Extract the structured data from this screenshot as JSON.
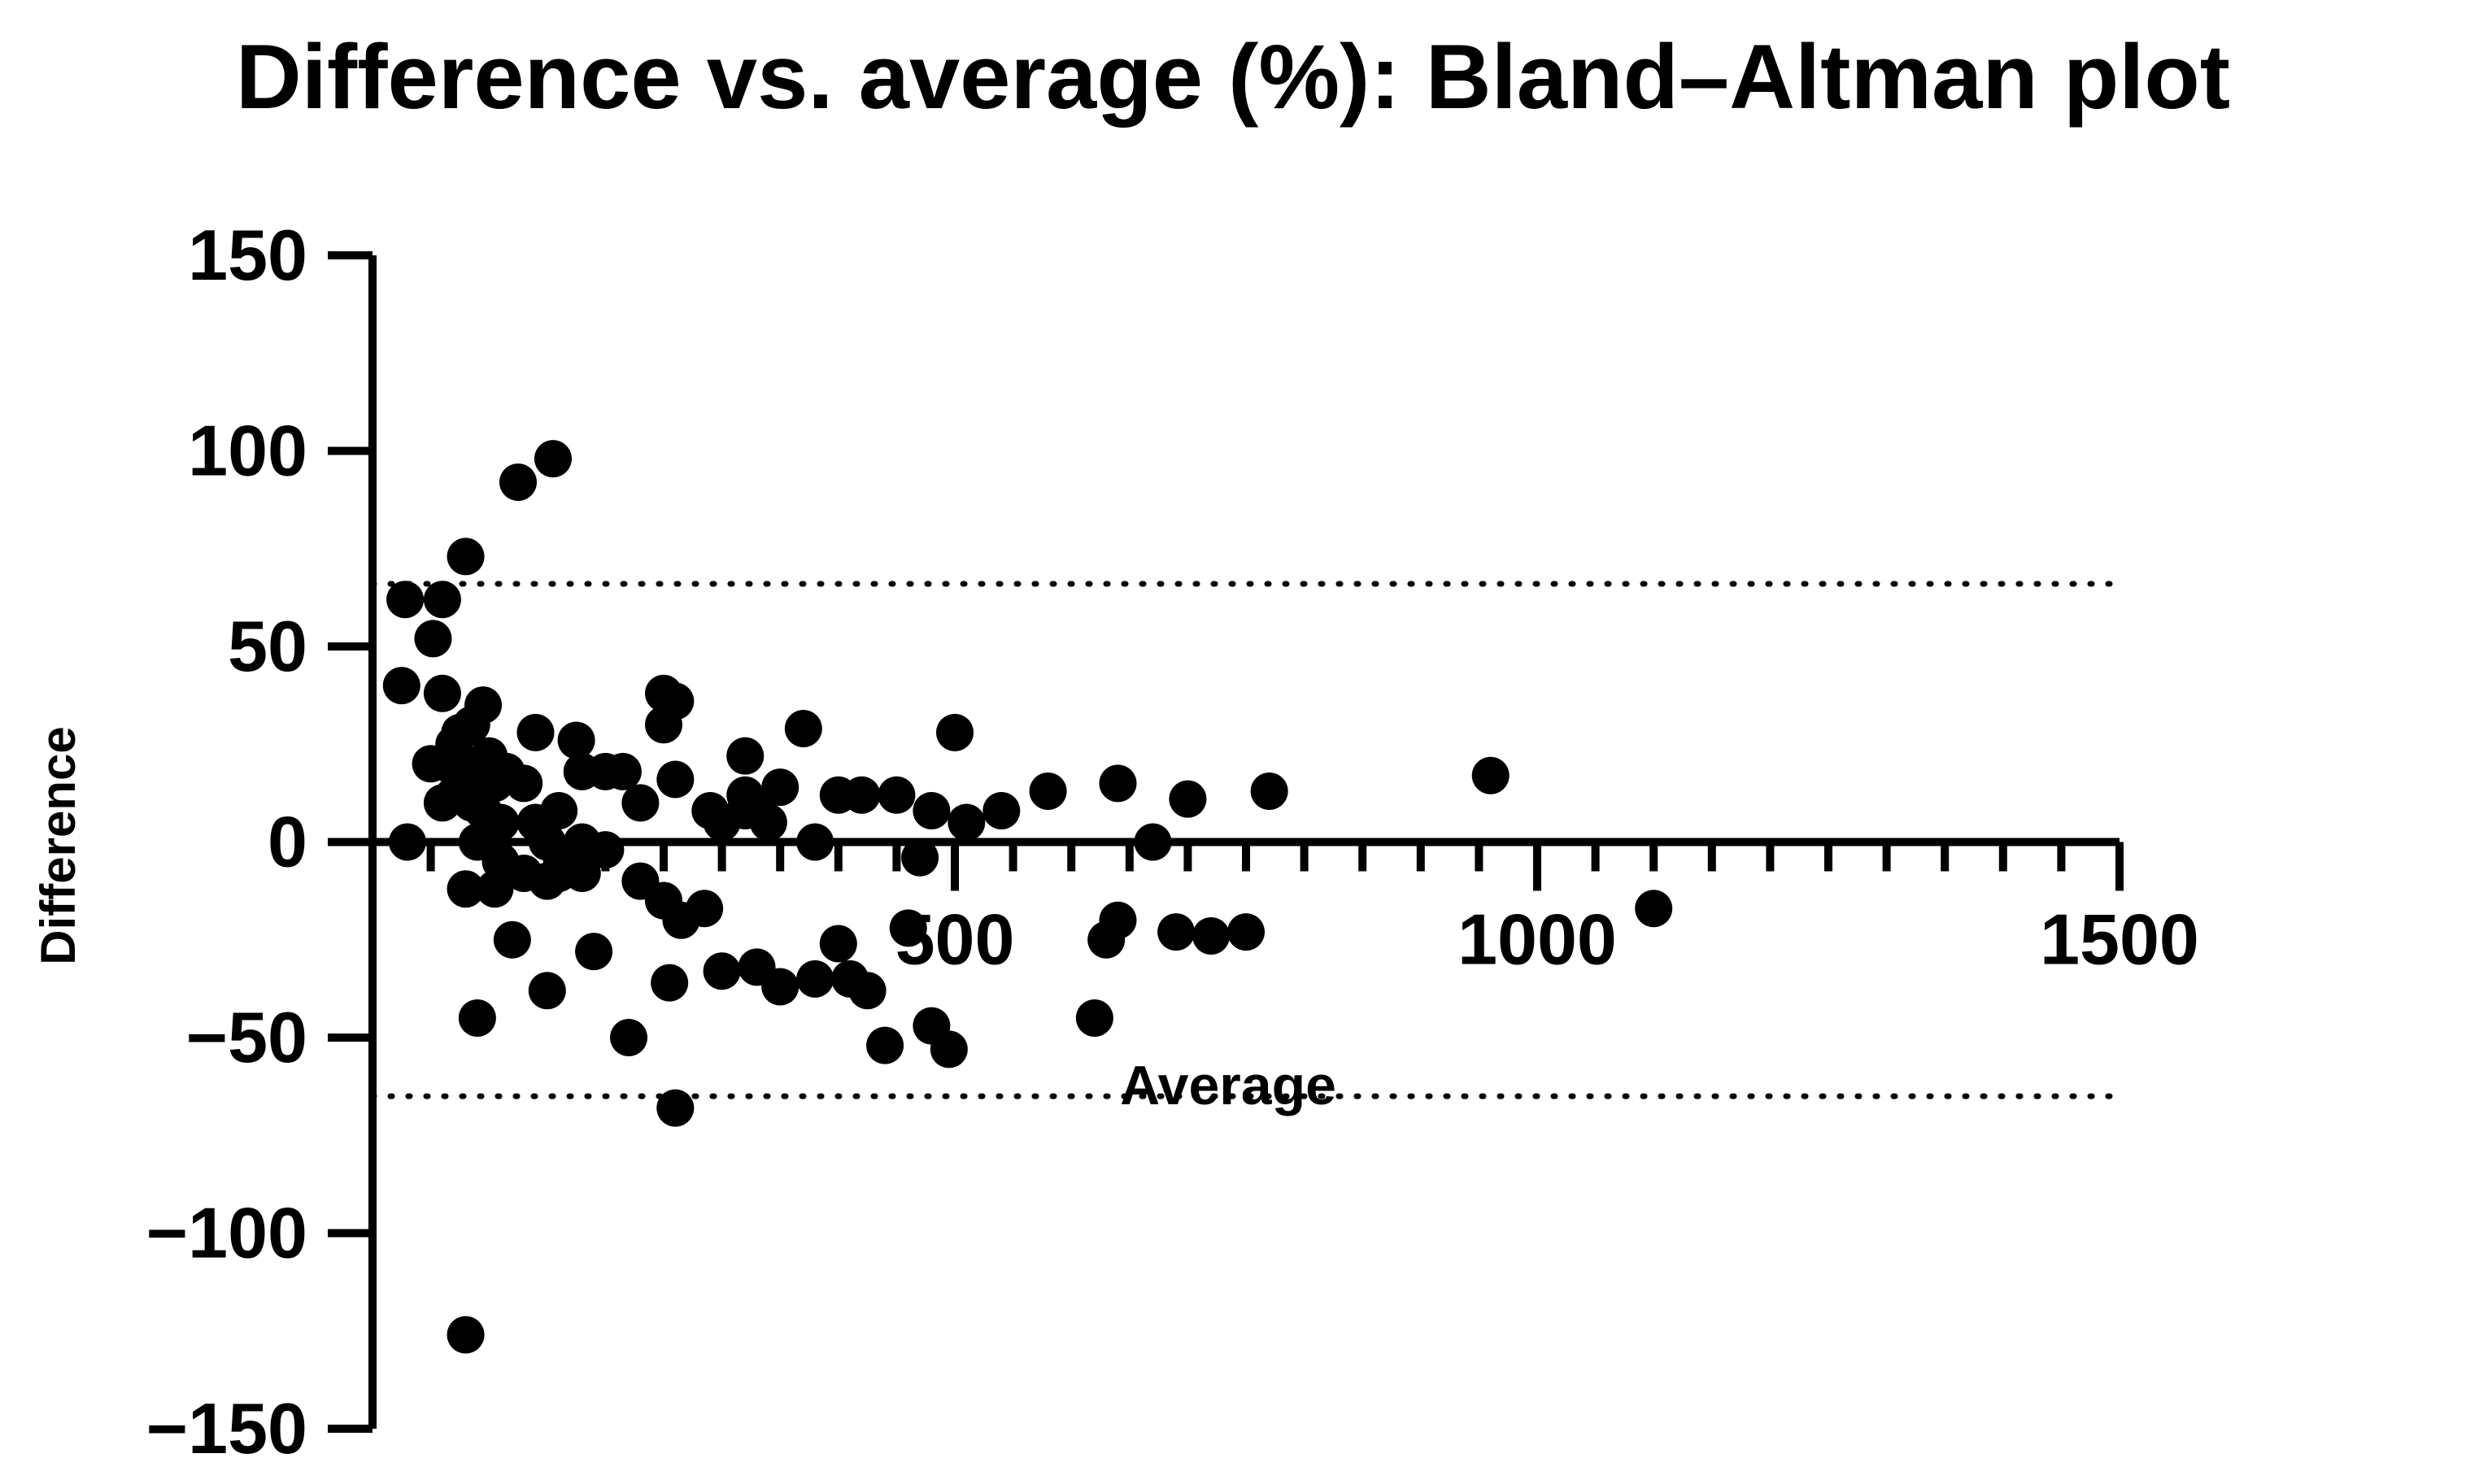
{
  "chart_data": {
    "type": "scatter",
    "title": "Difference vs. average (%): Bland–Altman plot",
    "xlabel": "Average",
    "ylabel": "Difference",
    "xlim": [
      0,
      1500
    ],
    "ylim": [
      -150,
      150
    ],
    "x_ticks": [
      {
        "value": 500,
        "label": "500"
      },
      {
        "value": 1000,
        "label": "1000"
      },
      {
        "value": 1500,
        "label": "1500"
      }
    ],
    "x_minor_step": 50,
    "y_ticks": [
      {
        "value": 150,
        "label": "150"
      },
      {
        "value": 100,
        "label": "100"
      },
      {
        "value": 50,
        "label": "50"
      },
      {
        "value": 0,
        "label": "0"
      },
      {
        "value": -50,
        "label": "−50"
      },
      {
        "value": -100,
        "label": "−100"
      },
      {
        "value": -150,
        "label": "−150"
      }
    ],
    "limits_of_agreement": [
      66,
      -65
    ],
    "grid": false,
    "marker_color": "#000000",
    "series": [
      {
        "points": [
          [
            28,
            62
          ],
          [
            60,
            62
          ],
          [
            52,
            52
          ],
          [
            80,
            73
          ],
          [
            25,
            40
          ],
          [
            60,
            38
          ],
          [
            95,
            35
          ],
          [
            30,
            0
          ],
          [
            75,
            28
          ],
          [
            70,
            25
          ],
          [
            50,
            20
          ],
          [
            65,
            20
          ],
          [
            95,
            20
          ],
          [
            105,
            15
          ],
          [
            80,
            15
          ],
          [
            70,
            12
          ],
          [
            85,
            10
          ],
          [
            95,
            8
          ],
          [
            130,
            15
          ],
          [
            160,
            8
          ],
          [
            180,
            0
          ],
          [
            200,
            -2
          ],
          [
            150,
            0
          ],
          [
            90,
            0
          ],
          [
            110,
            -5
          ],
          [
            130,
            -8
          ],
          [
            150,
            -10
          ],
          [
            160,
            -8
          ],
          [
            180,
            -8
          ],
          [
            230,
            -10
          ],
          [
            250,
            -15
          ],
          [
            80,
            -12
          ],
          [
            105,
            -12
          ],
          [
            120,
            -25
          ],
          [
            150,
            -38
          ],
          [
            190,
            -28
          ],
          [
            220,
            -50
          ],
          [
            90,
            -45
          ],
          [
            80,
            -126
          ],
          [
            125,
            92
          ],
          [
            155,
            98
          ],
          [
            140,
            28
          ],
          [
            175,
            26
          ],
          [
            180,
            18
          ],
          [
            215,
            18
          ],
          [
            250,
            30
          ],
          [
            250,
            38
          ],
          [
            260,
            36
          ],
          [
            260,
            16
          ],
          [
            290,
            8
          ],
          [
            300,
            5
          ],
          [
            330,
            8
          ],
          [
            320,
            22
          ],
          [
            350,
            14
          ],
          [
            340,
            5
          ],
          [
            320,
            12
          ],
          [
            370,
            29
          ],
          [
            380,
            0
          ],
          [
            400,
            12
          ],
          [
            420,
            12
          ],
          [
            450,
            12
          ],
          [
            480,
            8
          ],
          [
            500,
            28
          ],
          [
            510,
            5
          ],
          [
            540,
            8
          ],
          [
            580,
            13
          ],
          [
            640,
            15
          ],
          [
            670,
            0
          ],
          [
            700,
            11
          ],
          [
            770,
            13
          ],
          [
            960,
            17
          ],
          [
            250,
            -15
          ],
          [
            265,
            -20
          ],
          [
            285,
            -17
          ],
          [
            255,
            -36
          ],
          [
            300,
            -33
          ],
          [
            330,
            -32
          ],
          [
            350,
            -37
          ],
          [
            380,
            -35
          ],
          [
            400,
            -26
          ],
          [
            425,
            -38
          ],
          [
            460,
            -22
          ],
          [
            470,
            -4
          ],
          [
            480,
            -47
          ],
          [
            495,
            -53
          ],
          [
            440,
            -52
          ],
          [
            410,
            -35
          ],
          [
            260,
            -68
          ],
          [
            620,
            -45
          ],
          [
            630,
            -25
          ],
          [
            640,
            -20
          ],
          [
            690,
            -23
          ],
          [
            720,
            -24
          ],
          [
            750,
            -23
          ],
          [
            1100,
            -17
          ],
          [
            320,
            8
          ],
          [
            200,
            18
          ],
          [
            230,
            10
          ],
          [
            100,
            22
          ],
          [
            85,
            30
          ],
          [
            115,
            18
          ],
          [
            140,
            5
          ],
          [
            170,
            -5
          ],
          [
            60,
            10
          ],
          [
            110,
            5
          ]
        ]
      }
    ]
  }
}
